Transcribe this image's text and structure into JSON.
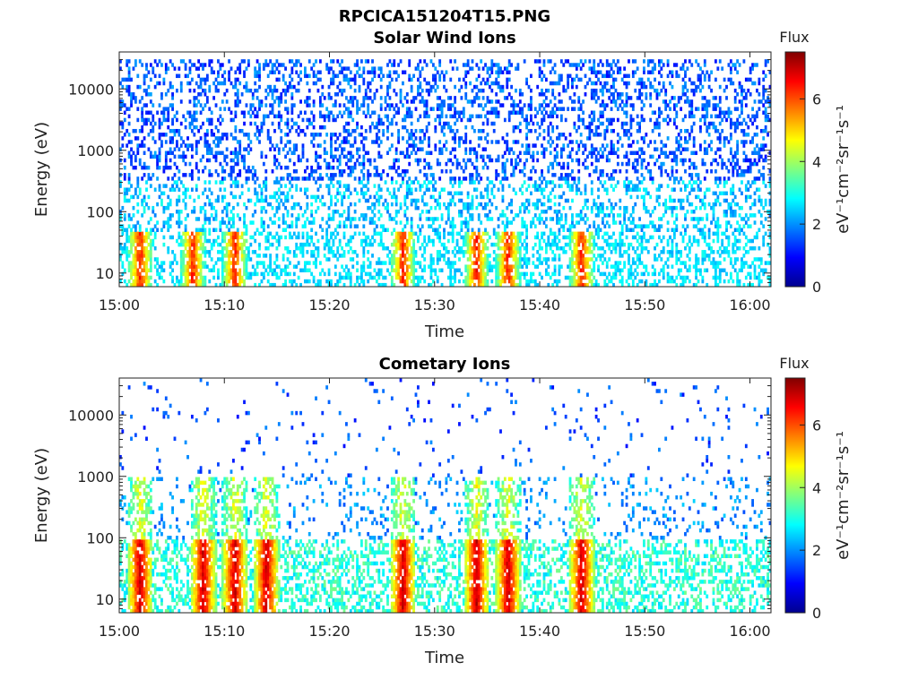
{
  "figure": {
    "title": "RPCICA151204T15.PNG"
  },
  "chart_data": [
    {
      "type": "heatmap",
      "title": "Solar Wind Ions",
      "xlabel": "Time",
      "ylabel": "Energy (eV)",
      "x_range": [
        "15:00",
        "16:02"
      ],
      "x_ticks": [
        "15:00",
        "15:10",
        "15:20",
        "15:30",
        "15:40",
        "15:50",
        "16:00"
      ],
      "y_scale": "log",
      "y_range": [
        6,
        40000
      ],
      "y_ticks": [
        "10",
        "100",
        "1000",
        "10000"
      ],
      "colorbar": {
        "title": "Flux",
        "label": "eV⁻¹cm⁻²sr⁻¹s⁻¹",
        "min": 0,
        "max": 7.5,
        "ticks": [
          "0",
          "2",
          "4",
          "6"
        ],
        "colormap": "jet"
      },
      "pattern": "broad scattered low flux (~1-2) from 50 eV to 30 keV; bursts of higher flux (4-6) below 40 eV near 15:02, 15:07, 15:11, 15:27, 15:34, 15:37, 15:44"
    },
    {
      "type": "heatmap",
      "title": "Cometary Ions",
      "xlabel": "Time",
      "ylabel": "Energy (eV)",
      "x_range": [
        "15:00",
        "16:02"
      ],
      "x_ticks": [
        "15:00",
        "15:10",
        "15:20",
        "15:30",
        "15:40",
        "15:50",
        "16:00"
      ],
      "y_scale": "log",
      "y_range": [
        6,
        40000
      ],
      "y_ticks": [
        "10",
        "100",
        "1000",
        "10000"
      ],
      "colorbar": {
        "title": "Flux",
        "label": "eV⁻¹cm⁻²sr⁻¹s⁻¹",
        "min": 0,
        "max": 7.5,
        "ticks": [
          "0",
          "2",
          "4",
          "6"
        ],
        "colormap": "jet"
      },
      "pattern": "sparse low flux above 1 keV; vertical streaks of high flux (5-7) below 100 eV near 15:02, 15:08, 15:11, 15:14, 15:27, 15:34, 15:37, 15:44"
    }
  ]
}
